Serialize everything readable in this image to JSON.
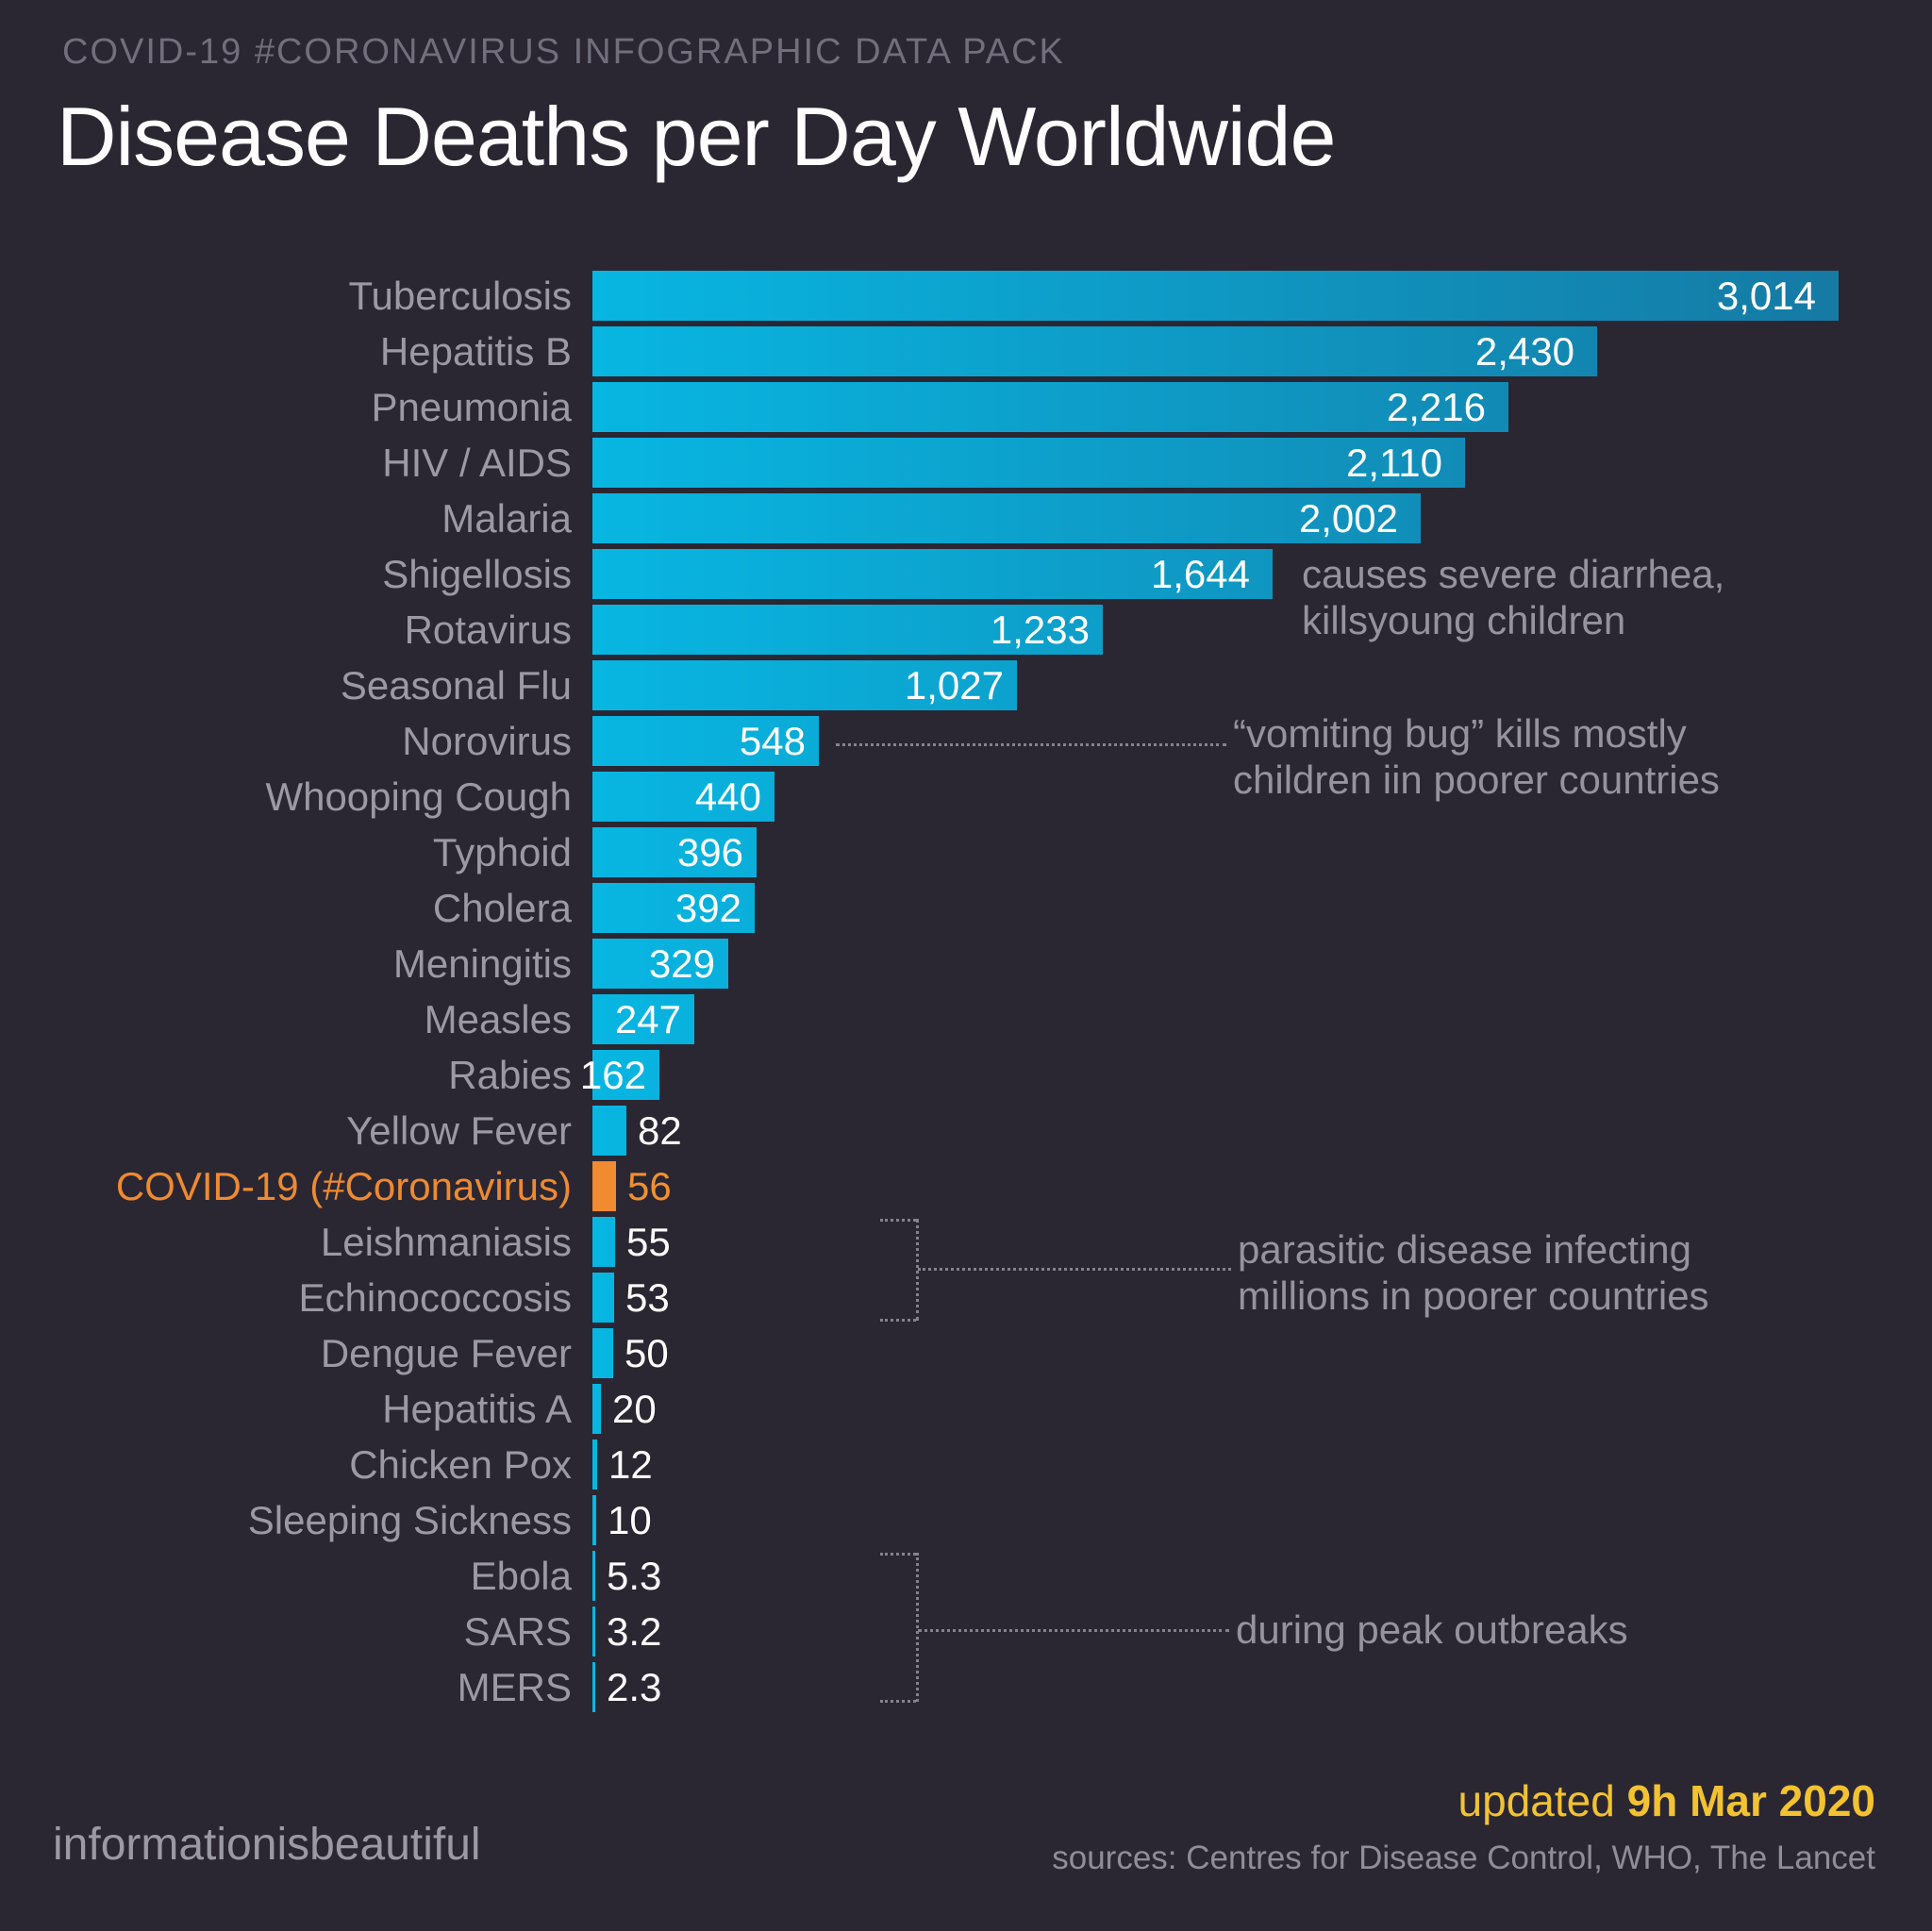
{
  "header": {
    "kicker": "COVID-19 #CORONAVIRUS INFOGRAPHIC DATA PACK",
    "title": "Disease Deaths per Day Worldwide"
  },
  "chart_data": {
    "type": "bar",
    "orientation": "horizontal",
    "title": "Disease Deaths per Day Worldwide",
    "xlim": [
      0,
      3014
    ],
    "grid": false,
    "categories": [
      "Tuberculosis",
      "Hepatitis B",
      "Pneumonia",
      "HIV / AIDS",
      "Malaria",
      "Shigellosis",
      "Rotavirus",
      "Seasonal Flu",
      "Norovirus",
      "Whooping Cough",
      "Typhoid",
      "Cholera",
      "Meningitis",
      "Measles",
      "Rabies",
      "Yellow Fever",
      "COVID-19 (#Coronavirus)",
      "Leishmaniasis",
      "Echinococcosis",
      "Dengue Fever",
      "Hepatitis A",
      "Chicken Pox",
      "Sleeping Sickness",
      "Ebola",
      "SARS",
      "MERS"
    ],
    "values": [
      3014,
      2430,
      2216,
      2110,
      2002,
      1644,
      1233,
      1027,
      548,
      440,
      396,
      392,
      329,
      247,
      162,
      82,
      56,
      55,
      53,
      50,
      20,
      12,
      10,
      5.3,
      3.2,
      2.3
    ],
    "value_labels": [
      "3,014",
      "2,430",
      "2,216",
      "2,110",
      "2,002",
      "1,644",
      "1,233",
      "1,027",
      "548",
      "440",
      "396",
      "392",
      "329",
      "247",
      "162",
      "82",
      "56",
      "55",
      "53",
      "50",
      "20",
      "12",
      "10",
      "5.3",
      "3.2",
      "2.3"
    ],
    "highlight_index": 16,
    "colors": {
      "background": "#2a2733",
      "bar_gradient_start": "#08b6e2",
      "bar_gradient_end": "#157aa4",
      "highlight": "#f08b2f",
      "label": "#9b99a4",
      "value": "#ffffff",
      "annotation": "#95939e",
      "kicker": "#716f7b",
      "yellow": "#f2c230"
    },
    "annotations": [
      {
        "target": "Shigellosis",
        "connector": "none",
        "text_lines": [
          "causes severe diarrhea,",
          "killsyoung children"
        ]
      },
      {
        "target": "Norovirus",
        "connector": "dotted-line",
        "text_lines": [
          "“vomiting bug” kills mostly",
          "children iin poorer countries"
        ]
      },
      {
        "target": "Leishmaniasis + Echinococcosis",
        "connector": "dotted-bracket",
        "text_lines": [
          "parasitic disease infecting",
          "millions in poorer countries"
        ]
      },
      {
        "target": "Ebola + SARS + MERS",
        "connector": "dotted-bracket",
        "text_lines": [
          "during peak outbreaks"
        ]
      }
    ]
  },
  "footer": {
    "brand": "informationisbeautiful",
    "updated_prefix": "updated ",
    "updated_date": "9h Mar 2020",
    "sources": "sources: Centres for Disease Control, WHO, The Lancet"
  }
}
